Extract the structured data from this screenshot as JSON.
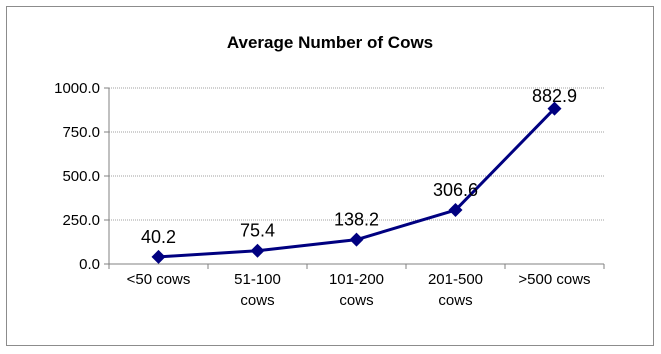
{
  "chart_data": {
    "type": "line",
    "title": "Average Number of Cows",
    "xlabel": "",
    "ylabel": "",
    "categories": [
      [
        "<50 cows"
      ],
      [
        "51-100",
        "cows"
      ],
      [
        "101-200",
        "cows"
      ],
      [
        "201-500",
        "cows"
      ],
      [
        ">500 cows"
      ]
    ],
    "series": [
      {
        "values": [
          40.2,
          75.4,
          138.2,
          306.6,
          882.9
        ]
      }
    ],
    "data_labels": [
      "40.2",
      "75.4",
      "138.2",
      "306.6",
      "882.9"
    ],
    "ylim": [
      0,
      1000
    ],
    "y_ticks": [
      0,
      250,
      500,
      750,
      1000
    ],
    "y_tick_labels": [
      "0.0",
      "250.0",
      "500.0",
      "750.0",
      "1000.0"
    ],
    "grid": true,
    "legend": "none",
    "colors": {
      "series": "#000080",
      "grid": "#a0a0a0",
      "axis": "#808080"
    }
  }
}
